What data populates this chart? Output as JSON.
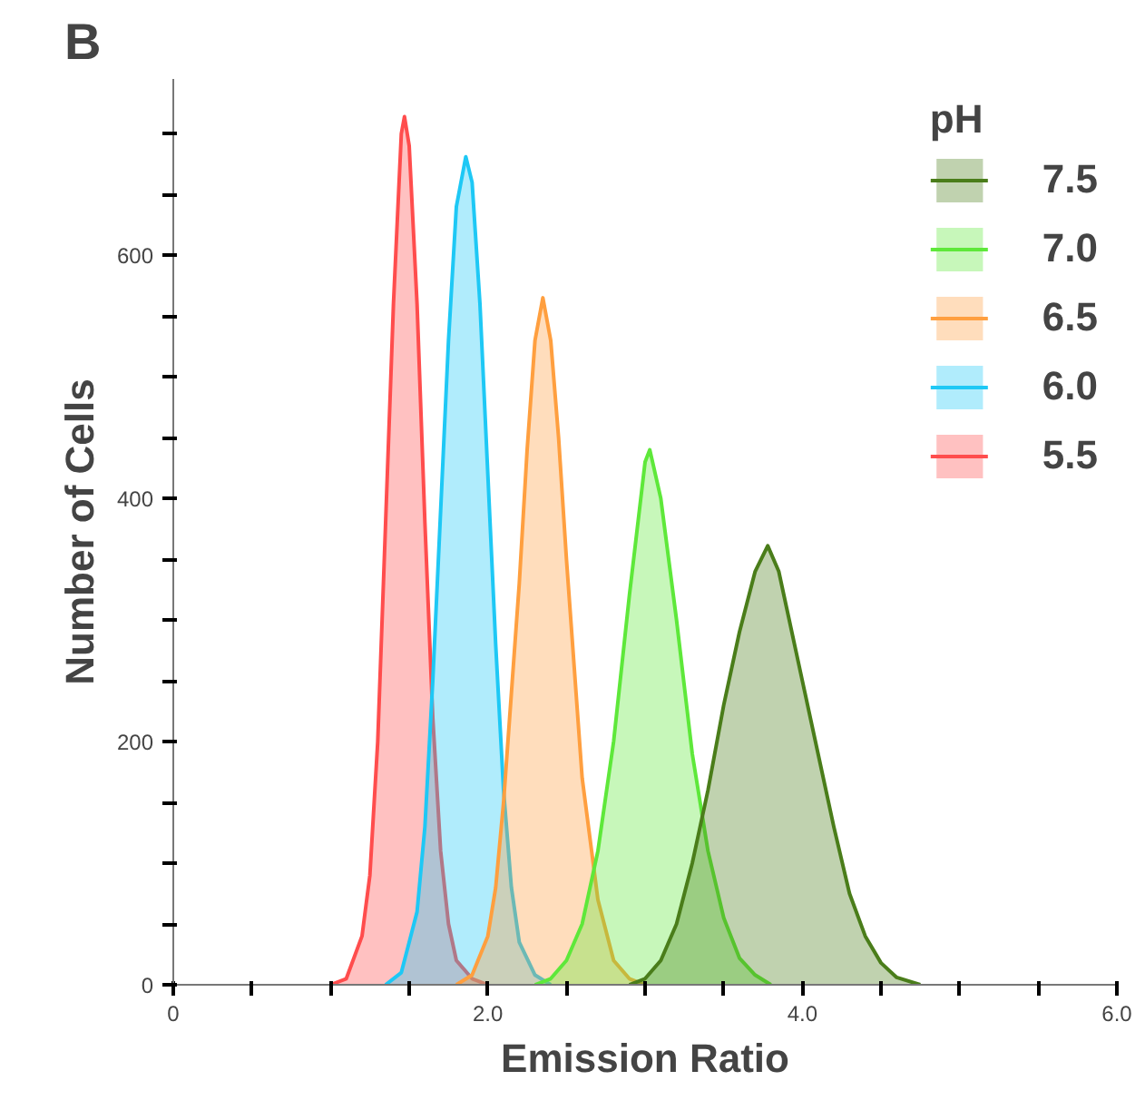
{
  "chart_data": {
    "type": "area",
    "xlabel": "Emission Ratio",
    "ylabel": "Number of Cells",
    "legend_title": "pH",
    "legend": "top right",
    "grid": false,
    "annotations": [
      "B"
    ],
    "xlim": [
      0,
      6
    ],
    "ylim": [
      0,
      745
    ],
    "xticks": [
      0,
      {
        "value": 0.5,
        "label": null
      },
      {
        "value": 1,
        "label": null
      },
      {
        "value": 1.5,
        "label": null
      },
      {
        "value": 2,
        "label": "2.0"
      },
      {
        "value": 2.5,
        "label": null
      },
      {
        "value": 3,
        "label": null
      },
      {
        "value": 3.5,
        "label": null
      },
      {
        "value": 4,
        "label": "4.0"
      },
      {
        "value": 4.5,
        "label": null
      },
      {
        "value": 5,
        "label": null
      },
      {
        "value": 5.5,
        "label": null
      },
      {
        "value": 6,
        "label": "6.0"
      }
    ],
    "yticks": [
      0,
      {
        "value": 50,
        "label": null
      },
      {
        "value": 100,
        "label": null
      },
      {
        "value": 150,
        "label": null
      },
      200,
      {
        "value": 250,
        "label": null
      },
      {
        "value": 300,
        "label": null
      },
      {
        "value": 350,
        "label": null
      },
      400,
      {
        "value": 450,
        "label": null
      },
      {
        "value": 500,
        "label": null
      },
      {
        "value": 550,
        "label": null
      },
      600,
      {
        "value": 650,
        "label": null
      },
      {
        "value": 700,
        "label": null
      }
    ],
    "series": [
      {
        "name": "7.5",
        "color": "#4a7d1a",
        "x": [
          2.9,
          3.0,
          3.1,
          3.2,
          3.3,
          3.4,
          3.5,
          3.6,
          3.7,
          3.78,
          3.85,
          3.9,
          4.0,
          4.1,
          4.2,
          4.3,
          4.4,
          4.5,
          4.6,
          4.75
        ],
        "values": [
          0,
          5,
          20,
          50,
          100,
          160,
          230,
          290,
          340,
          361,
          340,
          310,
          250,
          190,
          130,
          75,
          40,
          18,
          6,
          0
        ]
      },
      {
        "name": "7.0",
        "color": "#5ee83a",
        "x": [
          2.3,
          2.4,
          2.5,
          2.6,
          2.7,
          2.8,
          2.9,
          3.0,
          3.03,
          3.1,
          3.2,
          3.3,
          3.4,
          3.5,
          3.6,
          3.7,
          3.8
        ],
        "values": [
          0,
          5,
          20,
          50,
          110,
          200,
          320,
          430,
          440,
          400,
          300,
          190,
          110,
          55,
          22,
          8,
          0
        ]
      },
      {
        "name": "6.5",
        "color": "#ff9f3f",
        "x": [
          1.8,
          1.9,
          2.0,
          2.05,
          2.1,
          2.15,
          2.2,
          2.25,
          2.3,
          2.35,
          2.4,
          2.45,
          2.5,
          2.55,
          2.6,
          2.7,
          2.8,
          2.9,
          3.0
        ],
        "values": [
          0,
          8,
          40,
          80,
          150,
          240,
          330,
          440,
          530,
          565,
          530,
          450,
          350,
          260,
          170,
          70,
          20,
          5,
          0
        ]
      },
      {
        "name": "6.0",
        "color": "#1ec8f5",
        "x": [
          1.35,
          1.45,
          1.55,
          1.6,
          1.65,
          1.7,
          1.75,
          1.8,
          1.86,
          1.9,
          1.95,
          2.0,
          2.05,
          2.1,
          2.15,
          2.2,
          2.3,
          2.4
        ],
        "values": [
          0,
          10,
          60,
          130,
          250,
          390,
          530,
          640,
          681,
          660,
          560,
          420,
          280,
          160,
          80,
          35,
          8,
          0
        ]
      },
      {
        "name": "5.5",
        "color": "#ff4d4d",
        "x": [
          1.0,
          1.1,
          1.2,
          1.25,
          1.3,
          1.35,
          1.4,
          1.45,
          1.47,
          1.5,
          1.55,
          1.6,
          1.65,
          1.7,
          1.75,
          1.8,
          1.9,
          2.0
        ],
        "values": [
          0,
          5,
          40,
          90,
          200,
          380,
          560,
          700,
          714,
          690,
          560,
          380,
          220,
          110,
          50,
          20,
          5,
          0
        ]
      }
    ]
  }
}
